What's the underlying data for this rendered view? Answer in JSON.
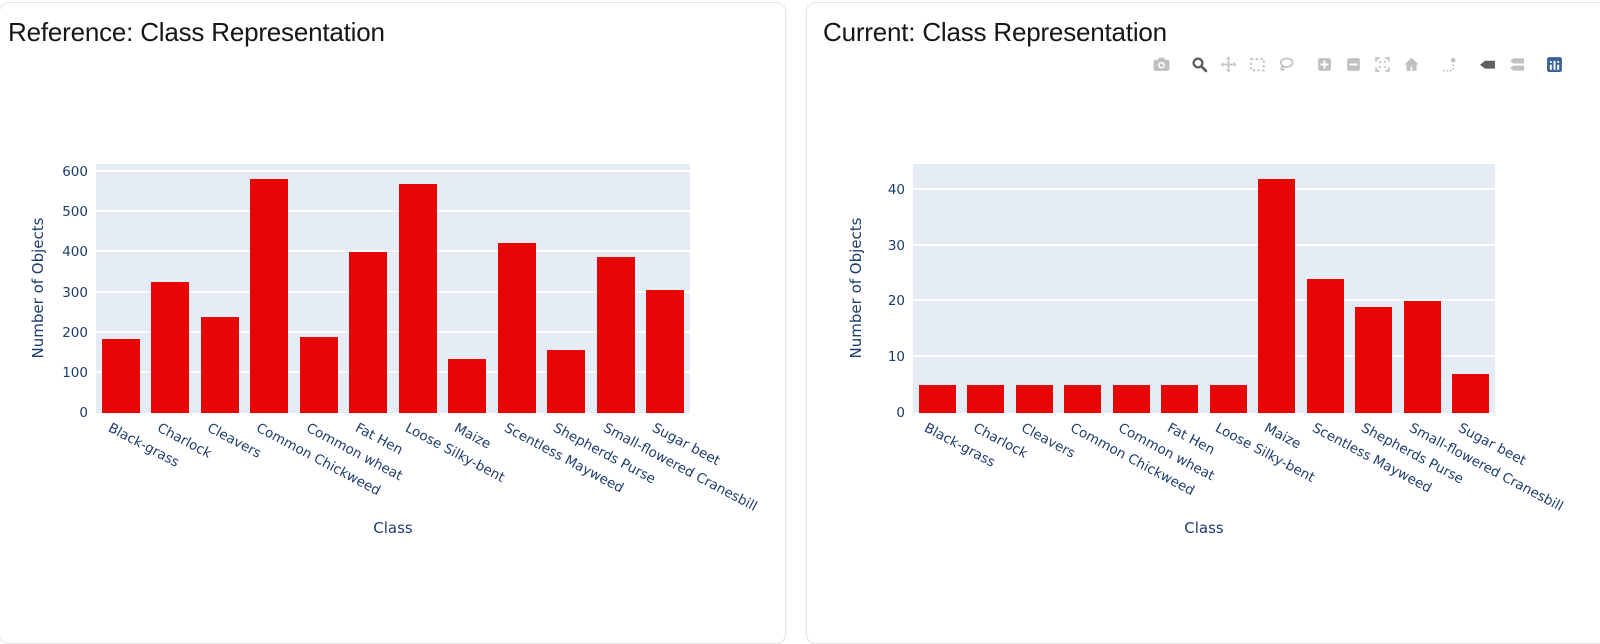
{
  "colors": {
    "bar_red": "#e80505",
    "plot_background": "#e5ecf6",
    "axis_text": "#1e3c6e",
    "title_text": "#161616",
    "modebar_icon": "#c0c0c0",
    "modebar_icon_active": "#5f5f5f",
    "plotly_logo_blue": "#3a639c"
  },
  "categories": [
    "Black-grass",
    "Charlock",
    "Cleavers",
    "Common Chickweed",
    "Common wheat",
    "Fat Hen",
    "Loose Silky-bent",
    "Maize",
    "Scentless Mayweed",
    "Shepherds Purse",
    "Small-flowered Cranesbill",
    "Sugar beet"
  ],
  "chart_data": [
    {
      "type": "bar",
      "title": "Reference: Class Representation",
      "xlabel": "Class",
      "ylabel": "Number of Objects",
      "categories": [
        "Black-grass",
        "Charlock",
        "Cleavers",
        "Common Chickweed",
        "Common wheat",
        "Fat Hen",
        "Loose Silky-bent",
        "Maize",
        "Scentless Mayweed",
        "Shepherds Purse",
        "Small-flowered Cranesbill",
        "Sugar beet"
      ],
      "values": [
        185,
        325,
        238,
        582,
        189,
        400,
        570,
        134,
        424,
        158,
        388,
        307
      ],
      "yticks": [
        0,
        100,
        200,
        300,
        400,
        500,
        600
      ],
      "ylim": [
        0,
        620
      ],
      "grid": true,
      "legend": "none",
      "bar_color": "#e80505"
    },
    {
      "type": "bar",
      "title": "Current: Class Representation",
      "xlabel": "Class",
      "ylabel": "Number of Objects",
      "categories": [
        "Black-grass",
        "Charlock",
        "Cleavers",
        "Common Chickweed",
        "Common wheat",
        "Fat Hen",
        "Loose Silky-bent",
        "Maize",
        "Scentless Mayweed",
        "Shepherds Purse",
        "Small-flowered Cranesbill",
        "Sugar beet"
      ],
      "values": [
        5,
        5,
        5,
        5,
        5,
        5,
        5,
        42,
        24,
        19,
        20,
        7
      ],
      "yticks": [
        0,
        10,
        20,
        30,
        40
      ],
      "ylim": [
        0,
        44.6
      ],
      "grid": true,
      "legend": "none",
      "bar_color": "#e80505"
    }
  ],
  "modebar": {
    "icons": [
      {
        "name": "camera-icon",
        "active": false,
        "group_start": false
      },
      {
        "name": "zoom-icon",
        "active": true,
        "group_start": true
      },
      {
        "name": "pan-icon",
        "active": false,
        "group_start": false
      },
      {
        "name": "box-select-icon",
        "active": false,
        "group_start": false
      },
      {
        "name": "lasso-select-icon",
        "active": false,
        "group_start": false
      },
      {
        "name": "zoom-in-icon",
        "active": false,
        "group_start": true
      },
      {
        "name": "zoom-out-icon",
        "active": false,
        "group_start": false
      },
      {
        "name": "autoscale-icon",
        "active": false,
        "group_start": false
      },
      {
        "name": "reset-axes-home-icon",
        "active": false,
        "group_start": false
      },
      {
        "name": "spikelines-icon",
        "active": false,
        "group_start": true
      },
      {
        "name": "hover-closest-icon",
        "active": true,
        "group_start": true
      },
      {
        "name": "hover-compare-icon",
        "active": false,
        "group_start": false
      },
      {
        "name": "plotly-logo-icon",
        "active": false,
        "group_start": true
      }
    ]
  }
}
